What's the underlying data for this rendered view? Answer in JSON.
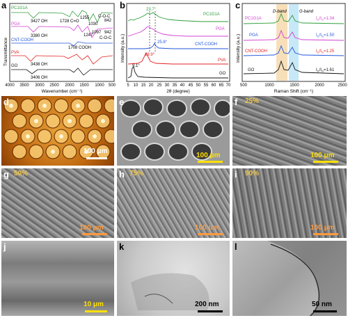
{
  "colors": {
    "pc1g1a": "#2e9e3a",
    "pga": "#d23fd2",
    "cnt": "#2255dd",
    "pva": "#e02020",
    "go": "#111111",
    "d_band": "#f4d7a8",
    "g_band": "#b9e2f5",
    "scale_yellow": "#ffe000",
    "scale_orange": "#ff9a3c",
    "pct_gold": "#f2c94c"
  },
  "panel_a": {
    "label": "a",
    "ylabel": "Transmittance",
    "xlabel": "Wavenumber (cm⁻¹)",
    "xticks": [
      "4000",
      "3500",
      "3000",
      "2500",
      "2000",
      "1500",
      "1000",
      "500"
    ],
    "series": [
      "PC1G1A",
      "PGA",
      "CNT-COOH",
      "PVA",
      "GO"
    ],
    "annotations": [
      "3427 OH",
      "1728 C=O",
      "1255",
      "1030",
      "C-O-C",
      "842",
      "3380 OH",
      "1247",
      "1097",
      "C-O-C",
      "942",
      "1708 COOH",
      "3438 OH",
      "3406 OH"
    ]
  },
  "panel_b": {
    "label": "b",
    "ylabel": "Intensity (a.u.)",
    "xlabel": "2θ (degree)",
    "xticks": [
      "5",
      "10",
      "15",
      "20",
      "25",
      "30",
      "35",
      "40",
      "45",
      "50",
      "55",
      "60",
      "65",
      "70"
    ],
    "series": [
      "PC1G1A",
      "PGA",
      "CNT-COOH",
      "PVA",
      "GO"
    ],
    "annotations": [
      "23.7°",
      "25.8°",
      "19.9°",
      "9.1°"
    ]
  },
  "panel_c": {
    "label": "c",
    "ylabel": "Intensity (a.u.)",
    "xlabel": "Raman Shift (cm⁻¹)",
    "xticks": [
      "500",
      "1000",
      "1500",
      "2000",
      "2500"
    ],
    "band_d": "D-band",
    "band_g": "G-band",
    "series": [
      "PC1G1A",
      "PGA",
      "CNT-COOH",
      "GO"
    ],
    "ratios": [
      "I",
      "D",
      "/I",
      "G",
      "=1.34",
      "=1.50",
      "=1.25",
      "=1.61"
    ]
  },
  "panel_d": {
    "label": "d",
    "scale": "100 μm"
  },
  "panel_e": {
    "label": "e",
    "scale": "100 μm"
  },
  "panel_f": {
    "label": "f",
    "scale": "100 μm",
    "pct": "25%"
  },
  "panel_g": {
    "label": "g",
    "scale": "100 μm",
    "pct": "50%"
  },
  "panel_h": {
    "label": "h",
    "scale": "100 μm",
    "pct": "75%"
  },
  "panel_i": {
    "label": "i",
    "scale": "100 μm",
    "pct": "90%"
  },
  "panel_j": {
    "label": "j",
    "scale": "10 μm"
  },
  "panel_k": {
    "label": "k",
    "scale": "200 nm"
  },
  "panel_l": {
    "label": "l",
    "scale": "50 nm"
  }
}
